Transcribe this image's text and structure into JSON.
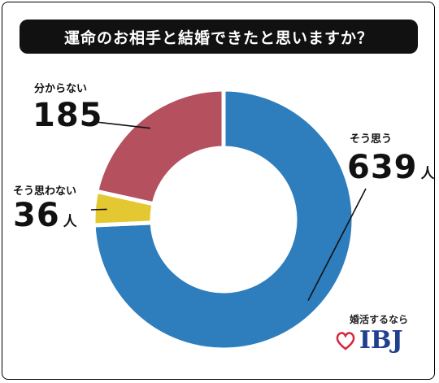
{
  "chart_data": {
    "type": "pie",
    "title": "運命のお相手と結婚できたと思いますか？",
    "unit": "人",
    "slices": [
      {
        "label": "そう思う",
        "value": 639,
        "color": "#2e7dbd"
      },
      {
        "label": "そう思わない",
        "value": 36,
        "color": "#e3c832"
      },
      {
        "label": "分からない",
        "value": 185,
        "color": "#b5505f"
      }
    ]
  },
  "brand": {
    "tagline": "婚活するなら",
    "name": "IBJ"
  },
  "colors": {
    "title_bg": "#111111",
    "brand_blue": "#1f3f8f",
    "brand_red": "#d7263d"
  }
}
